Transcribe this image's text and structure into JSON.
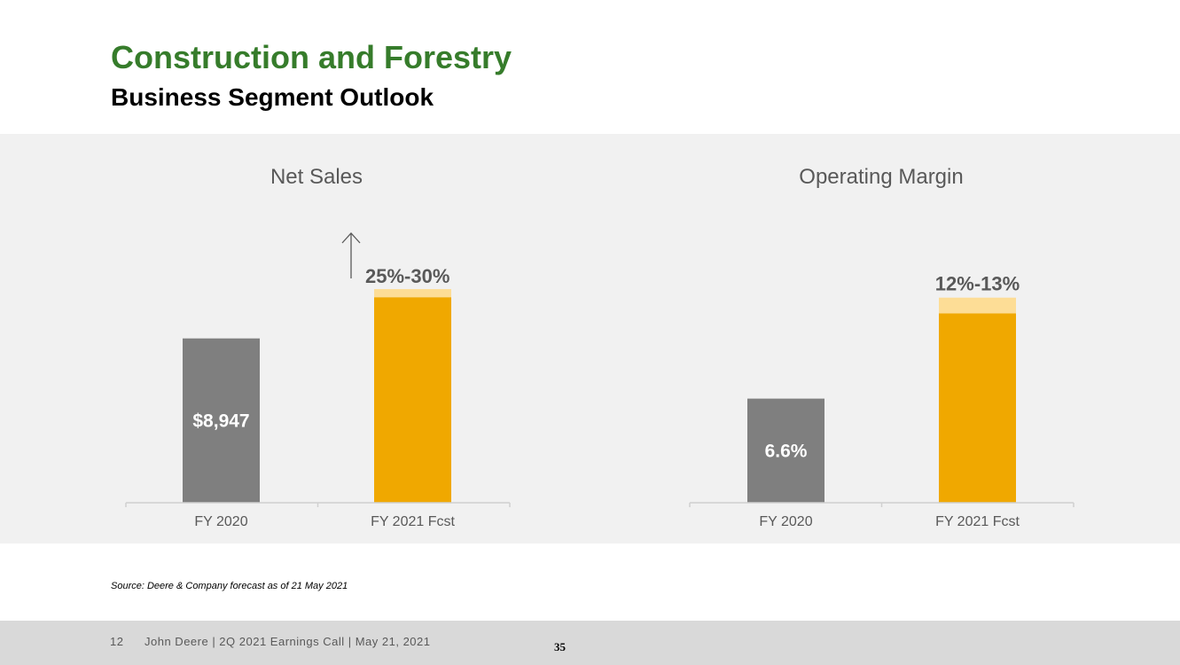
{
  "header": {
    "title": "Construction and Forestry",
    "subtitle": "Business Segment Outlook"
  },
  "colors": {
    "title_green": "#367C2B",
    "bar_gray": "#7f7f7f",
    "bar_orange": "#F0A800",
    "bar_light_orange": "#FDDD96",
    "panel_bg": "#f1f1f1",
    "footer_bg": "#d9d9d9"
  },
  "chart_data": [
    {
      "type": "bar",
      "title": "Net Sales",
      "categories": [
        "FY 2020",
        "FY 2021 Fcst"
      ],
      "values": [
        8947,
        11184
      ],
      "range_high": [
        null,
        11631
      ],
      "data_labels": [
        "$8,947",
        ""
      ],
      "growth_label": "25%-30%",
      "growth_arrow": "up-arrow-icon",
      "ylim": [
        0,
        14000
      ]
    },
    {
      "type": "bar",
      "title": "Operating Margin",
      "categories": [
        "FY 2020",
        "FY 2021 Fcst"
      ],
      "values": [
        6.6,
        12
      ],
      "range_high": [
        null,
        13
      ],
      "data_labels": [
        "6.6%",
        ""
      ],
      "range_label": "12%-13%",
      "ylim": [
        0,
        16.3
      ]
    }
  ],
  "source_note": "Source: Deere & Company forecast as of 21 May 2021",
  "footer": {
    "slide_number": "12",
    "text": "John Deere | 2Q 2021 Earnings Call | May 21, 2021",
    "page_number": "35"
  }
}
